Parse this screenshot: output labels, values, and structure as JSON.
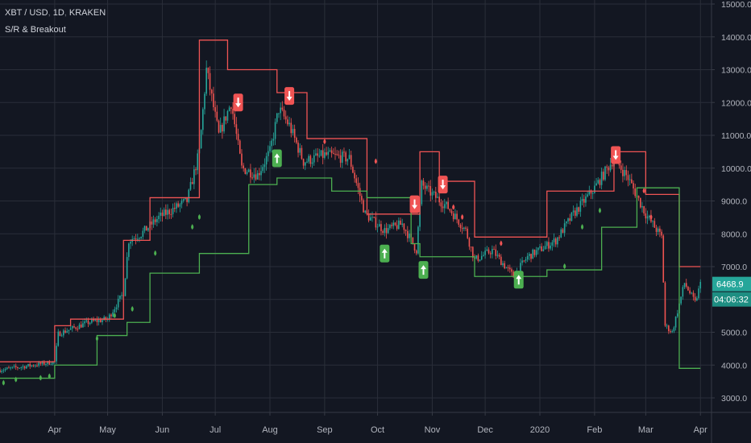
{
  "header": {
    "symbol": "XBT / USD",
    "interval": "1D",
    "exchange": "KRAKEN",
    "indicator": "S/R & Breakout"
  },
  "colors": {
    "background": "#131722",
    "grid": "#2a2e39",
    "text": "#b2b5be",
    "up": "#26a69a",
    "down": "#ef5350",
    "resistance": "#f05454",
    "support": "#4caf50",
    "price_tag": "#26a69a",
    "timer_tag": "#1e8e82"
  },
  "price_axis": {
    "ticks": [
      "15000.0",
      "14000.0",
      "13000.0",
      "12000.0",
      "11000.0",
      "10000.0",
      "9000.0",
      "8000.0",
      "7000.0",
      "6000.0",
      "5000.0",
      "4000.0",
      "3000.0"
    ],
    "current_price": "6468.9",
    "countdown": "04:06:32"
  },
  "time_axis": {
    "labels": [
      "Apr",
      "May",
      "Jun",
      "Jul",
      "Aug",
      "Sep",
      "Oct",
      "Nov",
      "Dec",
      "2020",
      "Feb",
      "Mar",
      "Apr"
    ]
  },
  "chart_data": {
    "type": "candlestick",
    "title": "XBT / USD, 1D, KRAKEN",
    "indicator": "S/R & Breakout",
    "x_range": [
      "2019-03-01",
      "2020-04-05"
    ],
    "ylim": [
      2500,
      15000
    ],
    "grid": true,
    "price_path": [
      {
        "date": "2019-03-01",
        "close": 3850
      },
      {
        "date": "2019-03-20",
        "close": 4000
      },
      {
        "date": "2019-04-01",
        "close": 4100
      },
      {
        "date": "2019-04-03",
        "close": 4950
      },
      {
        "date": "2019-04-20",
        "close": 5300
      },
      {
        "date": "2019-05-01",
        "close": 5400
      },
      {
        "date": "2019-05-10",
        "close": 6200
      },
      {
        "date": "2019-05-13",
        "close": 7800
      },
      {
        "date": "2019-05-20",
        "close": 8000
      },
      {
        "date": "2019-05-30",
        "close": 8500
      },
      {
        "date": "2019-06-15",
        "close": 9000
      },
      {
        "date": "2019-06-22",
        "close": 10500
      },
      {
        "date": "2019-06-26",
        "close": 13000
      },
      {
        "date": "2019-07-03",
        "close": 11000
      },
      {
        "date": "2019-07-10",
        "close": 12000
      },
      {
        "date": "2019-07-16",
        "close": 10000
      },
      {
        "date": "2019-07-25",
        "close": 9800
      },
      {
        "date": "2019-08-01",
        "close": 10500
      },
      {
        "date": "2019-08-06",
        "close": 11800
      },
      {
        "date": "2019-08-12",
        "close": 11300
      },
      {
        "date": "2019-08-20",
        "close": 10200
      },
      {
        "date": "2019-09-01",
        "close": 10400
      },
      {
        "date": "2019-09-15",
        "close": 10300
      },
      {
        "date": "2019-09-24",
        "close": 8600
      },
      {
        "date": "2019-10-05",
        "close": 8100
      },
      {
        "date": "2019-10-15",
        "close": 8300
      },
      {
        "date": "2019-10-23",
        "close": 7500
      },
      {
        "date": "2019-10-26",
        "close": 9500
      },
      {
        "date": "2019-11-01",
        "close": 9200
      },
      {
        "date": "2019-11-10",
        "close": 8800
      },
      {
        "date": "2019-11-20",
        "close": 8100
      },
      {
        "date": "2019-11-25",
        "close": 7200
      },
      {
        "date": "2019-12-05",
        "close": 7500
      },
      {
        "date": "2019-12-17",
        "close": 6700
      },
      {
        "date": "2019-12-25",
        "close": 7300
      },
      {
        "date": "2020-01-10",
        "close": 7800
      },
      {
        "date": "2020-01-20",
        "close": 8600
      },
      {
        "date": "2020-02-01",
        "close": 9400
      },
      {
        "date": "2020-02-12",
        "close": 10300
      },
      {
        "date": "2020-02-20",
        "close": 9700
      },
      {
        "date": "2020-03-01",
        "close": 8600
      },
      {
        "date": "2020-03-10",
        "close": 7900
      },
      {
        "date": "2020-03-12",
        "close": 5200
      },
      {
        "date": "2020-03-16",
        "close": 5000
      },
      {
        "date": "2020-03-23",
        "close": 6500
      },
      {
        "date": "2020-03-29",
        "close": 5900
      },
      {
        "date": "2020-04-01",
        "close": 6469
      }
    ],
    "resistance_steps": [
      {
        "from": "2019-03-01",
        "to": "2019-04-01",
        "value": 4100
      },
      {
        "from": "2019-04-01",
        "to": "2019-04-10",
        "value": 5200
      },
      {
        "from": "2019-04-10",
        "to": "2019-05-10",
        "value": 5400
      },
      {
        "from": "2019-05-10",
        "to": "2019-05-25",
        "value": 7800
      },
      {
        "from": "2019-05-25",
        "to": "2019-06-22",
        "value": 9100
      },
      {
        "from": "2019-06-22",
        "to": "2019-07-08",
        "value": 13900
      },
      {
        "from": "2019-07-08",
        "to": "2019-08-05",
        "value": 13000
      },
      {
        "from": "2019-08-05",
        "to": "2019-08-22",
        "value": 12300
      },
      {
        "from": "2019-08-22",
        "to": "2019-09-25",
        "value": 10900
      },
      {
        "from": "2019-09-25",
        "to": "2019-10-25",
        "value": 8600
      },
      {
        "from": "2019-10-25",
        "to": "2019-11-05",
        "value": 10500
      },
      {
        "from": "2019-11-05",
        "to": "2019-11-25",
        "value": 9600
      },
      {
        "from": "2019-11-25",
        "to": "2020-01-05",
        "value": 7900
      },
      {
        "from": "2020-01-05",
        "to": "2020-02-12",
        "value": 9300
      },
      {
        "from": "2020-02-12",
        "to": "2020-03-01",
        "value": 10500
      },
      {
        "from": "2020-03-01",
        "to": "2020-03-20",
        "value": 9200
      },
      {
        "from": "2020-03-20",
        "to": "2020-04-01",
        "value": 7000
      }
    ],
    "support_steps": [
      {
        "from": "2019-03-01",
        "to": "2019-04-01",
        "value": 3600
      },
      {
        "from": "2019-04-01",
        "to": "2019-04-25",
        "value": 4000
      },
      {
        "from": "2019-04-25",
        "to": "2019-05-12",
        "value": 4900
      },
      {
        "from": "2019-05-12",
        "to": "2019-05-25",
        "value": 5300
      },
      {
        "from": "2019-05-25",
        "to": "2019-06-22",
        "value": 6800
      },
      {
        "from": "2019-06-22",
        "to": "2019-07-20",
        "value": 7400
      },
      {
        "from": "2019-07-20",
        "to": "2019-08-05",
        "value": 9500
      },
      {
        "from": "2019-08-05",
        "to": "2019-09-05",
        "value": 9700
      },
      {
        "from": "2019-09-05",
        "to": "2019-09-25",
        "value": 9300
      },
      {
        "from": "2019-09-25",
        "to": "2019-10-20",
        "value": 9100
      },
      {
        "from": "2019-10-20",
        "to": "2019-10-25",
        "value": 7700
      },
      {
        "from": "2019-10-25",
        "to": "2019-11-25",
        "value": 7300
      },
      {
        "from": "2019-11-25",
        "to": "2020-01-05",
        "value": 6700
      },
      {
        "from": "2020-01-05",
        "to": "2020-02-05",
        "value": 6900
      },
      {
        "from": "2020-02-05",
        "to": "2020-02-25",
        "value": 8200
      },
      {
        "from": "2020-02-25",
        "to": "2020-03-20",
        "value": 9400
      },
      {
        "from": "2020-03-20",
        "to": "2020-04-01",
        "value": 3900
      }
    ],
    "breakouts": [
      {
        "date": "2019-07-14",
        "price": 12000,
        "direction": "down"
      },
      {
        "date": "2019-08-12",
        "price": 12200,
        "direction": "down"
      },
      {
        "date": "2019-10-22",
        "price": 8900,
        "direction": "down"
      },
      {
        "date": "2019-11-07",
        "price": 9500,
        "direction": "down"
      },
      {
        "date": "2020-02-13",
        "price": 10400,
        "direction": "down"
      },
      {
        "date": "2019-08-05",
        "price": 10300,
        "direction": "up"
      },
      {
        "date": "2019-10-05",
        "price": 7400,
        "direction": "up"
      },
      {
        "date": "2019-10-27",
        "price": 6900,
        "direction": "up"
      },
      {
        "date": "2019-12-20",
        "price": 6600,
        "direction": "up"
      }
    ],
    "dots": [
      {
        "date": "2019-03-03",
        "price": 3450,
        "color": "support"
      },
      {
        "date": "2019-03-10",
        "price": 3550,
        "color": "support"
      },
      {
        "date": "2019-03-24",
        "price": 3600,
        "color": "support"
      },
      {
        "date": "2019-03-29",
        "price": 3650,
        "color": "support"
      },
      {
        "date": "2019-04-25",
        "price": 4800,
        "color": "support"
      },
      {
        "date": "2019-05-05",
        "price": 5500,
        "color": "support"
      },
      {
        "date": "2019-05-15",
        "price": 5700,
        "color": "support"
      },
      {
        "date": "2019-05-28",
        "price": 7400,
        "color": "support"
      },
      {
        "date": "2019-06-18",
        "price": 8200,
        "color": "support"
      },
      {
        "date": "2019-06-22",
        "price": 8500,
        "color": "support"
      },
      {
        "date": "2019-09-01",
        "price": 10800,
        "color": "resistance"
      },
      {
        "date": "2019-09-30",
        "price": 10200,
        "color": "resistance"
      },
      {
        "date": "2019-11-13",
        "price": 8800,
        "color": "resistance"
      },
      {
        "date": "2019-11-18",
        "price": 8500,
        "color": "resistance"
      },
      {
        "date": "2019-12-10",
        "price": 7700,
        "color": "resistance"
      },
      {
        "date": "2020-01-15",
        "price": 7000,
        "color": "support"
      },
      {
        "date": "2020-01-25",
        "price": 8200,
        "color": "support"
      },
      {
        "date": "2020-02-04",
        "price": 8700,
        "color": "support"
      },
      {
        "date": "2020-02-29",
        "price": 9300,
        "color": "resistance"
      },
      {
        "date": "2020-03-04",
        "price": 8500,
        "color": "resistance"
      }
    ]
  }
}
